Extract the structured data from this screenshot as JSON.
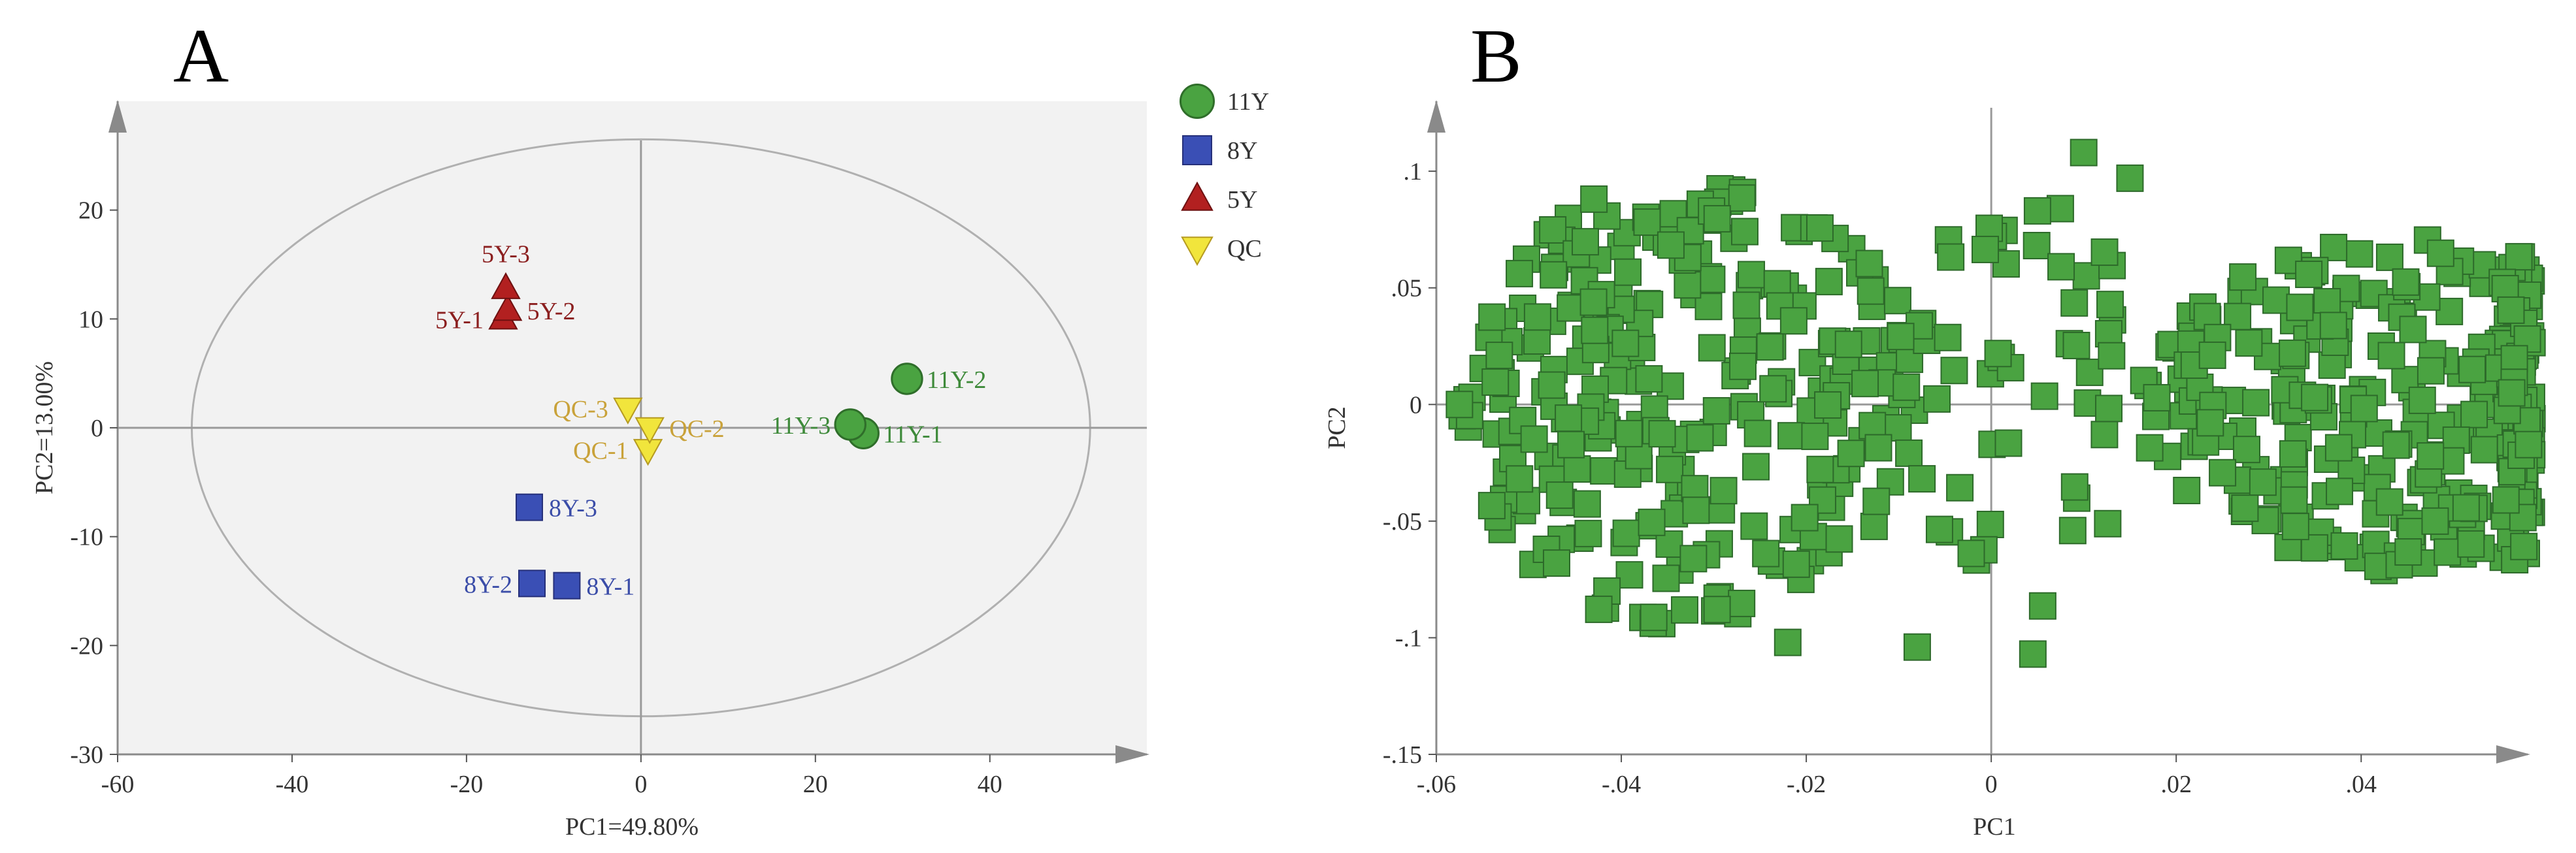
{
  "colors": {
    "11Y": "#4aa341",
    "8Y": "#3a4fb5",
    "5Y": "#b22020",
    "QC": "#f1e53c",
    "label_11Y": "#3e8a3a",
    "label_8Y": "#3b4da8",
    "label_5Y": "#8b1f1f",
    "label_QC": "#c9a23a",
    "loading": "#4aa341",
    "ellipse": "#b0b0b0",
    "axis_arrow": "#8a8a8a"
  },
  "chart_data": [
    {
      "id": "A",
      "type": "scatter",
      "panel_label": "A",
      "xlabel": "PC1=49.80%",
      "ylabel": "PC2=13.00%",
      "xlim": [
        -60,
        58
      ],
      "ylim": [
        -30,
        30
      ],
      "xticks": [
        -60,
        -40,
        -20,
        0,
        20,
        40
      ],
      "yticks": [
        -30,
        -20,
        -10,
        0,
        10,
        20
      ],
      "ellipse": {
        "cx": 0,
        "cy": 0,
        "rx": 51.5,
        "ry": 26.5
      },
      "legend": [
        {
          "name": "11Y",
          "marker": "circle"
        },
        {
          "name": "8Y",
          "marker": "square"
        },
        {
          "name": "5Y",
          "marker": "triangle"
        },
        {
          "name": "QC",
          "marker": "triangle-down"
        }
      ],
      "series": [
        {
          "name": "11Y",
          "marker": "circle",
          "points": [
            {
              "label": "11Y-1",
              "x": 25.5,
              "y": -0.5,
              "label_pos": "right"
            },
            {
              "label": "11Y-2",
              "x": 30.5,
              "y": 4.5,
              "label_pos": "right"
            },
            {
              "label": "11Y-3",
              "x": 24.0,
              "y": 0.3,
              "label_pos": "left"
            }
          ]
        },
        {
          "name": "8Y",
          "marker": "square",
          "points": [
            {
              "label": "8Y-1",
              "x": -8.5,
              "y": -14.5,
              "label_pos": "right"
            },
            {
              "label": "8Y-2",
              "x": -12.5,
              "y": -14.3,
              "label_pos": "left"
            },
            {
              "label": "8Y-3",
              "x": -12.8,
              "y": -7.3,
              "label_pos": "right"
            }
          ]
        },
        {
          "name": "5Y",
          "marker": "triangle",
          "points": [
            {
              "label": "5Y-1",
              "x": -15.8,
              "y": 10.0,
              "label_pos": "left"
            },
            {
              "label": "5Y-2",
              "x": -15.3,
              "y": 10.8,
              "label_pos": "right"
            },
            {
              "label": "5Y-3",
              "x": -15.5,
              "y": 12.8,
              "label_pos": "above"
            }
          ]
        },
        {
          "name": "QC",
          "marker": "triangle-down",
          "points": [
            {
              "label": "QC-1",
              "x": 0.8,
              "y": -2.0,
              "label_pos": "left"
            },
            {
              "label": "QC-2",
              "x": 1.0,
              "y": 0.0,
              "label_pos": "right"
            },
            {
              "label": "QC-3",
              "x": -1.5,
              "y": 1.8,
              "label_pos": "left"
            }
          ]
        }
      ]
    },
    {
      "id": "B",
      "type": "scatter",
      "panel_label": "B",
      "xlabel": "PC1",
      "ylabel": "PC2",
      "xlim": [
        -0.06,
        0.058
      ],
      "ylim": [
        -0.15,
        0.13
      ],
      "xticks": [
        -0.06,
        -0.04,
        -0.02,
        0,
        0.02,
        0.04
      ],
      "yticks": [
        -0.15,
        -0.1,
        -0.05,
        0,
        0.05,
        0.1
      ],
      "series": [
        {
          "name": "variables",
          "marker": "square",
          "points_generated": 640,
          "seed": 20240607,
          "structure": "two dense lobes (centers PC1 ≈ -0.033 and +0.045) bridged by sparse variables near PC1 = 0"
        }
      ],
      "sample_points": [
        {
          "x": 0.01,
          "y": 0.108
        },
        {
          "x": 0.015,
          "y": 0.097
        },
        {
          "x": 0.0045,
          "y": -0.107
        },
        {
          "x": -0.0575,
          "y": 0.0
        },
        {
          "x": 0.052,
          "y": 0.015
        },
        {
          "x": -0.022,
          "y": -0.102
        },
        {
          "x": -0.008,
          "y": -0.104
        },
        {
          "x": 0.005,
          "y": 0.083
        },
        {
          "x": -0.047,
          "y": -0.068
        },
        {
          "x": 0.048,
          "y": -0.05
        }
      ]
    }
  ]
}
